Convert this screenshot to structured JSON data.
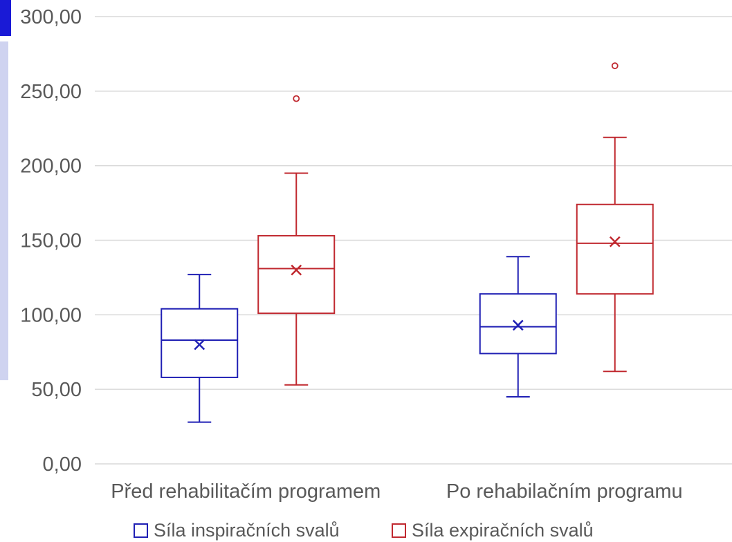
{
  "chart_data": {
    "type": "box",
    "categories": [
      "Před rehabilitačím programem",
      "Po rehabilačním programu"
    ],
    "ylim": [
      0,
      300
    ],
    "yticks": [
      "0,00",
      "50,00",
      "100,00",
      "150,00",
      "200,00",
      "250,00",
      "300,00"
    ],
    "grid": true,
    "legend_position": "bottom",
    "series": [
      {
        "name": "Síla inspiračních svalů",
        "color": "#1f1fb4",
        "boxes": [
          {
            "min": 28,
            "q1": 58,
            "median": 83,
            "q3": 104,
            "max": 127,
            "mean": 80,
            "outliers": []
          },
          {
            "min": 45,
            "q1": 74,
            "median": 92,
            "q3": 114,
            "max": 139,
            "mean": 93,
            "outliers": []
          }
        ]
      },
      {
        "name": "Síla expiračních svalů",
        "color": "#c0282f",
        "boxes": [
          {
            "min": 53,
            "q1": 101,
            "median": 131,
            "q3": 153,
            "max": 195,
            "mean": 130,
            "outliers": [
              245
            ]
          },
          {
            "min": 62,
            "q1": 114,
            "median": 148,
            "q3": 174,
            "max": 219,
            "mean": 149,
            "outliers": [
              267
            ]
          }
        ]
      }
    ]
  },
  "edge_accent_colors": [
    "#1a1ad6",
    "#cfd3f0"
  ]
}
